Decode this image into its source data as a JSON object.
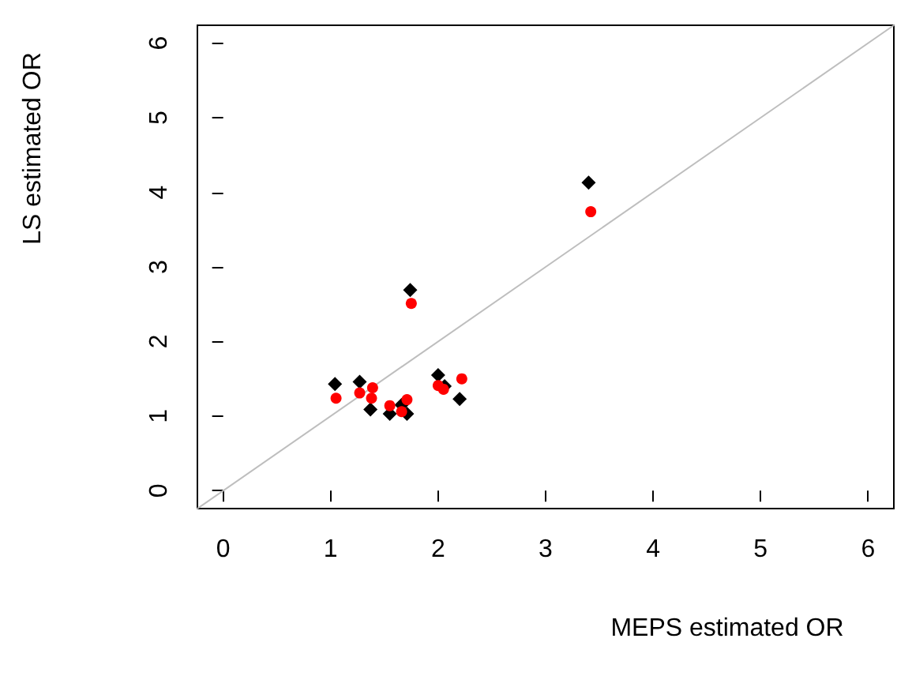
{
  "chart_data": {
    "type": "scatter",
    "xlabel": "MEPS estimated OR",
    "ylabel": "LS estimated OR",
    "xlim": [
      -0.24,
      6.24
    ],
    "ylim": [
      -0.24,
      6.24
    ],
    "xticks": [
      0,
      1,
      2,
      3,
      4,
      5,
      6
    ],
    "yticks": [
      0,
      1,
      2,
      3,
      4,
      5,
      6
    ],
    "series": [
      {
        "type": "line",
        "color": "#bebebe",
        "marker": "none",
        "line_style": "solid",
        "x": [
          -0.24,
          6.24
        ],
        "values": [
          -0.24,
          6.24
        ]
      },
      {
        "color": "#000000",
        "marker": "diamond",
        "x": [
          1.04,
          1.27,
          1.37,
          1.55,
          1.66,
          1.71,
          1.74,
          2.0,
          2.06,
          2.2,
          3.4
        ],
        "values": [
          1.43,
          1.46,
          1.09,
          1.03,
          1.15,
          1.03,
          2.69,
          1.55,
          1.4,
          1.23,
          4.13
        ]
      },
      {
        "color": "#ff0000",
        "marker": "circle",
        "x": [
          1.05,
          1.27,
          1.39,
          1.38,
          1.55,
          1.66,
          1.71,
          1.75,
          2.0,
          2.05,
          2.22,
          3.42
        ],
        "values": [
          1.24,
          1.31,
          1.38,
          1.24,
          1.14,
          1.06,
          1.22,
          2.51,
          1.41,
          1.36,
          1.5,
          3.74
        ]
      }
    ]
  }
}
